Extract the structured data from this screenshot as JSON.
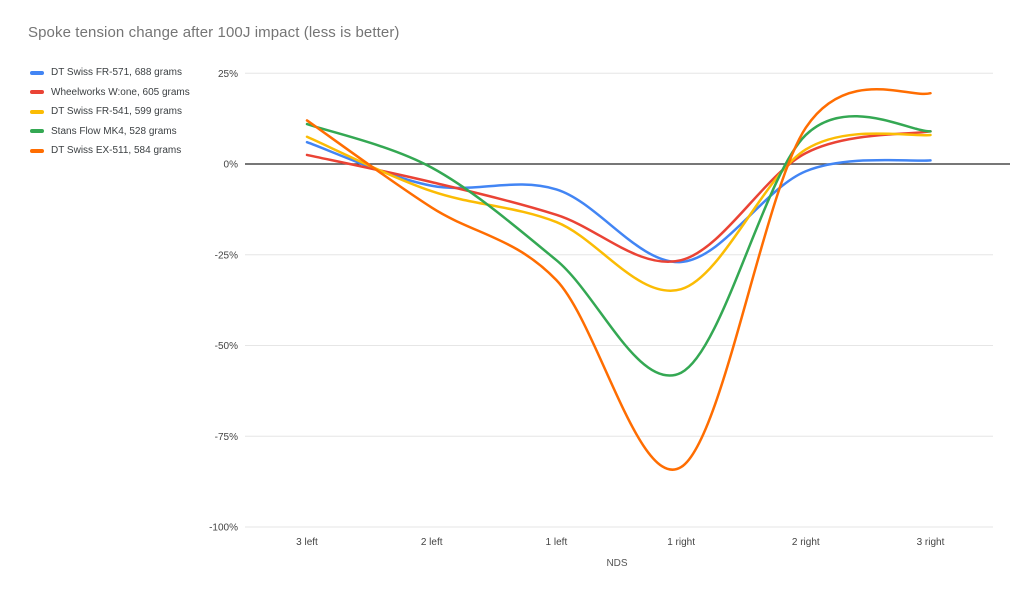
{
  "chart_data": {
    "type": "line",
    "smooth": true,
    "title": "Spoke tension change after 100J impact (less is better)",
    "xlabel": "NDS",
    "ylabel": "",
    "categories": [
      "3 left",
      "2 left",
      "1 left",
      "1 right",
      "2 right",
      "3 right"
    ],
    "series": [
      {
        "name": "DT Swiss FR-571, 688 grams",
        "color": "#4285F4",
        "values": [
          6,
          -6,
          -7,
          -27,
          -2,
          1
        ]
      },
      {
        "name": "Wheelworks W:one, 605 grams",
        "color": "#EA4335",
        "values": [
          2.5,
          -5,
          -14,
          -26.5,
          3,
          9
        ]
      },
      {
        "name": "DT Swiss FR-541, 599 grams",
        "color": "#FBBC04",
        "values": [
          7.5,
          -7.5,
          -16,
          -34.5,
          4,
          8
        ]
      },
      {
        "name": "Stans Flow MK4, 528 grams",
        "color": "#34A853",
        "values": [
          11,
          -1,
          -26.5,
          -57.5,
          8,
          9
        ]
      },
      {
        "name": "DT Swiss EX-511, 584 grams",
        "color": "#FF6D01",
        "values": [
          12,
          -12,
          -32,
          -83.5,
          10,
          19.5
        ]
      }
    ],
    "y_ticks": [
      "25%",
      "0%",
      "-25%",
      "-50%",
      "-75%",
      "-100%"
    ],
    "y_tick_values": [
      25,
      0,
      -25,
      -50,
      -75,
      -100
    ],
    "ylim": [
      -100,
      25
    ],
    "grid": true,
    "legend_position": "top-left"
  },
  "style": {
    "background": "#ffffff",
    "grid_color": "#e6e6e6",
    "zero_line_color": "#4a4a4a",
    "tick_label_color": "#444444",
    "title_color": "#757575",
    "legend_text_color": "#3c4043"
  }
}
